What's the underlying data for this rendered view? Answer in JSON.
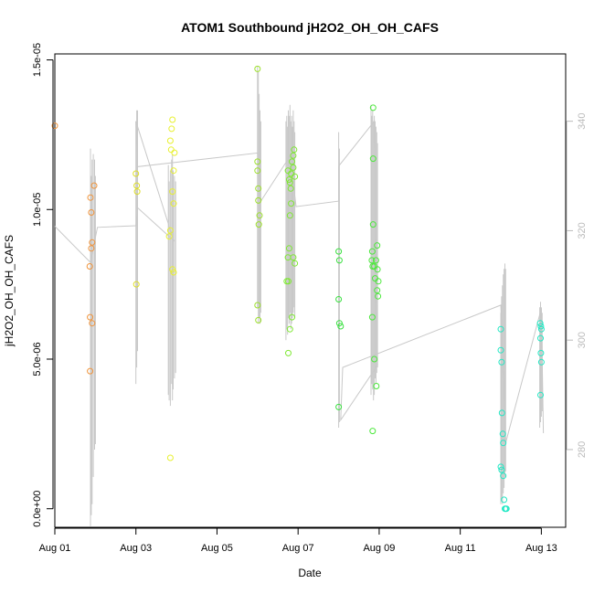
{
  "chart_data": {
    "type": "scatter",
    "title": "ATOM1 Southbound jH2O2_OH_OH_CAFS",
    "xlabel": "Date",
    "ylabel": "jH2O2_OH_OH_CAFS",
    "xlim": [
      0,
      12.6
    ],
    "ylim": [
      -6.2e-07,
      1.52e-05
    ],
    "y2lim": [
      265.8,
      352.3
    ],
    "x_ticks": [
      {
        "x": 0,
        "label": "Aug 01"
      },
      {
        "x": 2,
        "label": "Aug 03"
      },
      {
        "x": 4,
        "label": "Aug 05"
      },
      {
        "x": 6,
        "label": "Aug 07"
      },
      {
        "x": 8,
        "label": "Aug 09"
      },
      {
        "x": 10,
        "label": "Aug 11"
      },
      {
        "x": 12,
        "label": "Aug 13"
      }
    ],
    "y_ticks": [
      {
        "v": 0,
        "label": "0.0e+00"
      },
      {
        "v": 5e-06,
        "label": "5.0e-06"
      },
      {
        "v": 1e-05,
        "label": "1.0e-05"
      },
      {
        "v": 1.5e-05,
        "label": "1.5e-05"
      }
    ],
    "y2_ticks": [
      {
        "v": 280,
        "label": "280"
      },
      {
        "v": 300,
        "label": "300"
      },
      {
        "v": 320,
        "label": "320"
      },
      {
        "v": 340,
        "label": "340"
      }
    ],
    "points": [
      {
        "x": 0.0,
        "y": 1.28e-05,
        "color": "#f0943c"
      },
      {
        "x": 0.88,
        "y": 1.04e-05,
        "color": "#f0943c"
      },
      {
        "x": 0.9,
        "y": 9.9e-06,
        "color": "#f0943c"
      },
      {
        "x": 0.92,
        "y": 8.9e-06,
        "color": "#f0943c"
      },
      {
        "x": 0.9,
        "y": 8.7e-06,
        "color": "#f0943c"
      },
      {
        "x": 0.86,
        "y": 8.1e-06,
        "color": "#f0943c"
      },
      {
        "x": 0.87,
        "y": 6.4e-06,
        "color": "#f0943c"
      },
      {
        "x": 0.92,
        "y": 6.2e-06,
        "color": "#f0943c"
      },
      {
        "x": 0.87,
        "y": 4.6e-06,
        "color": "#f0943c"
      },
      {
        "x": 0.97,
        "y": 1.08e-05,
        "color": "#f0943c"
      },
      {
        "x": 2.0,
        "y": 1.12e-05,
        "color": "#dede28"
      },
      {
        "x": 2.02,
        "y": 1.08e-05,
        "color": "#dede28"
      },
      {
        "x": 2.03,
        "y": 1.06e-05,
        "color": "#dede28"
      },
      {
        "x": 2.01,
        "y": 7.5e-06,
        "color": "#dede28"
      },
      {
        "x": 2.85,
        "y": 1.23e-05,
        "color": "#e8f030"
      },
      {
        "x": 2.9,
        "y": 1.3e-05,
        "color": "#e8f030"
      },
      {
        "x": 2.88,
        "y": 1.27e-05,
        "color": "#e8f030"
      },
      {
        "x": 2.87,
        "y": 1.2e-05,
        "color": "#e8f030"
      },
      {
        "x": 2.95,
        "y": 1.19e-05,
        "color": "#e8f030"
      },
      {
        "x": 2.93,
        "y": 1.13e-05,
        "color": "#e8f030"
      },
      {
        "x": 2.9,
        "y": 1.06e-05,
        "color": "#e8f030"
      },
      {
        "x": 2.93,
        "y": 1.02e-05,
        "color": "#e8f030"
      },
      {
        "x": 2.85,
        "y": 9.3e-06,
        "color": "#e8f030"
      },
      {
        "x": 2.82,
        "y": 9.1e-06,
        "color": "#e8f030"
      },
      {
        "x": 2.9,
        "y": 8e-06,
        "color": "#e8f030"
      },
      {
        "x": 2.93,
        "y": 7.9e-06,
        "color": "#e8f030"
      },
      {
        "x": 2.85,
        "y": 1.7e-06,
        "color": "#e8f030"
      },
      {
        "x": 5.0,
        "y": 1.47e-05,
        "color": "#9ce02c"
      },
      {
        "x": 5.0,
        "y": 1.16e-05,
        "color": "#9ce02c"
      },
      {
        "x": 5.0,
        "y": 1.13e-05,
        "color": "#9ce02c"
      },
      {
        "x": 5.02,
        "y": 1.07e-05,
        "color": "#9ce02c"
      },
      {
        "x": 5.02,
        "y": 1.03e-05,
        "color": "#9ce02c"
      },
      {
        "x": 5.05,
        "y": 9.8e-06,
        "color": "#9ce02c"
      },
      {
        "x": 5.03,
        "y": 9.5e-06,
        "color": "#9ce02c"
      },
      {
        "x": 5.0,
        "y": 6.8e-06,
        "color": "#9ce02c"
      },
      {
        "x": 5.02,
        "y": 6.3e-06,
        "color": "#9ce02c"
      },
      {
        "x": 5.75,
        "y": 1.13e-05,
        "color": "#7ee832"
      },
      {
        "x": 5.78,
        "y": 1.1e-05,
        "color": "#7ee832"
      },
      {
        "x": 5.8,
        "y": 1.09e-05,
        "color": "#7ee832"
      },
      {
        "x": 5.82,
        "y": 1.07e-05,
        "color": "#7ee832"
      },
      {
        "x": 5.83,
        "y": 1.12e-05,
        "color": "#7ee832"
      },
      {
        "x": 5.85,
        "y": 1.16e-05,
        "color": "#7ee832"
      },
      {
        "x": 5.88,
        "y": 1.18e-05,
        "color": "#7ee832"
      },
      {
        "x": 5.9,
        "y": 1.2e-05,
        "color": "#7ee832"
      },
      {
        "x": 5.92,
        "y": 1.11e-05,
        "color": "#7ee832"
      },
      {
        "x": 5.88,
        "y": 1.14e-05,
        "color": "#7ee832"
      },
      {
        "x": 5.83,
        "y": 1.02e-05,
        "color": "#7ee832"
      },
      {
        "x": 5.8,
        "y": 9.8e-06,
        "color": "#7ee832"
      },
      {
        "x": 5.78,
        "y": 8.7e-06,
        "color": "#7ee832"
      },
      {
        "x": 5.75,
        "y": 8.4e-06,
        "color": "#7ee832"
      },
      {
        "x": 5.88,
        "y": 8.4e-06,
        "color": "#7ee832"
      },
      {
        "x": 5.92,
        "y": 8.2e-06,
        "color": "#7ee832"
      },
      {
        "x": 5.72,
        "y": 7.6e-06,
        "color": "#7ee832"
      },
      {
        "x": 5.76,
        "y": 7.6e-06,
        "color": "#7ee832"
      },
      {
        "x": 5.85,
        "y": 6.4e-06,
        "color": "#7ee832"
      },
      {
        "x": 5.8,
        "y": 6e-06,
        "color": "#7ee832"
      },
      {
        "x": 5.76,
        "y": 5.2e-06,
        "color": "#7ee832"
      },
      {
        "x": 7.0,
        "y": 8.6e-06,
        "color": "#3ae040"
      },
      {
        "x": 7.02,
        "y": 8.3e-06,
        "color": "#3ae040"
      },
      {
        "x": 7.0,
        "y": 7e-06,
        "color": "#3ae040"
      },
      {
        "x": 7.02,
        "y": 6.2e-06,
        "color": "#3ae040"
      },
      {
        "x": 7.05,
        "y": 6.1e-06,
        "color": "#3ae040"
      },
      {
        "x": 7.0,
        "y": 3.4e-06,
        "color": "#3ae040"
      },
      {
        "x": 7.85,
        "y": 1.34e-05,
        "color": "#4ce83c"
      },
      {
        "x": 7.85,
        "y": 1.17e-05,
        "color": "#4ce83c"
      },
      {
        "x": 7.85,
        "y": 9.5e-06,
        "color": "#4ce83c"
      },
      {
        "x": 7.95,
        "y": 8.8e-06,
        "color": "#4ce83c"
      },
      {
        "x": 7.83,
        "y": 8.6e-06,
        "color": "#4ce83c"
      },
      {
        "x": 7.82,
        "y": 8.3e-06,
        "color": "#4ce83c"
      },
      {
        "x": 7.92,
        "y": 8.3e-06,
        "color": "#4ce83c"
      },
      {
        "x": 7.84,
        "y": 8.1e-06,
        "color": "#4ce83c"
      },
      {
        "x": 7.88,
        "y": 8.1e-06,
        "color": "#4ce83c"
      },
      {
        "x": 7.96,
        "y": 8e-06,
        "color": "#4ce83c"
      },
      {
        "x": 7.9,
        "y": 7.7e-06,
        "color": "#4ce83c"
      },
      {
        "x": 7.98,
        "y": 7.6e-06,
        "color": "#4ce83c"
      },
      {
        "x": 7.95,
        "y": 7.3e-06,
        "color": "#4ce83c"
      },
      {
        "x": 7.97,
        "y": 7.1e-06,
        "color": "#4ce83c"
      },
      {
        "x": 7.83,
        "y": 6.4e-06,
        "color": "#4ce83c"
      },
      {
        "x": 7.88,
        "y": 5e-06,
        "color": "#4ce83c"
      },
      {
        "x": 7.93,
        "y": 4.1e-06,
        "color": "#4ce83c"
      },
      {
        "x": 7.84,
        "y": 2.6e-06,
        "color": "#4ce83c"
      },
      {
        "x": 11.0,
        "y": 6e-06,
        "color": "#22e8c4"
      },
      {
        "x": 11.0,
        "y": 5.3e-06,
        "color": "#22e8c4"
      },
      {
        "x": 11.02,
        "y": 4.9e-06,
        "color": "#22e8c4"
      },
      {
        "x": 11.03,
        "y": 3.2e-06,
        "color": "#22e8c4"
      },
      {
        "x": 11.05,
        "y": 2.5e-06,
        "color": "#22e8c4"
      },
      {
        "x": 11.06,
        "y": 2.2e-06,
        "color": "#22e8c4"
      },
      {
        "x": 11.0,
        "y": 1.4e-06,
        "color": "#22e8c4"
      },
      {
        "x": 11.02,
        "y": 1.3e-06,
        "color": "#22e8c4"
      },
      {
        "x": 11.06,
        "y": 1.1e-06,
        "color": "#22e8c4"
      },
      {
        "x": 11.08,
        "y": 3e-07,
        "color": "#22e8c4"
      },
      {
        "x": 11.1,
        "y": 0.0,
        "color": "#22e8c4"
      },
      {
        "x": 11.12,
        "y": 0.0,
        "color": "#22e8c4"
      },
      {
        "x": 11.14,
        "y": 0.0,
        "color": "#22e8c4"
      },
      {
        "x": 11.97,
        "y": 6.2e-06,
        "color": "#22e8c4"
      },
      {
        "x": 11.99,
        "y": 6.1e-06,
        "color": "#22e8c4"
      },
      {
        "x": 12.0,
        "y": 6e-06,
        "color": "#22e8c4"
      },
      {
        "x": 11.98,
        "y": 5.7e-06,
        "color": "#22e8c4"
      },
      {
        "x": 11.99,
        "y": 5.2e-06,
        "color": "#22e8c4"
      },
      {
        "x": 12.0,
        "y": 4.9e-06,
        "color": "#22e8c4"
      },
      {
        "x": 11.98,
        "y": 3.8e-06,
        "color": "#22e8c4"
      }
    ],
    "line_series": {
      "name": "secondary axis trace",
      "color": "#c8c8c8",
      "y2": [
        [
          0.0,
          320.8
        ],
        [
          0.88,
          314.2
        ],
        [
          1.05,
          320.6
        ],
        [
          2.0,
          320.9
        ],
        [
          2.04,
          324.2
        ],
        [
          2.93,
          318.2
        ],
        [
          2.0,
          340.0
        ],
        [
          2.04,
          331.7
        ],
        [
          5.0,
          334.2
        ],
        [
          5.08,
          325.4
        ],
        [
          5.8,
          333.6
        ],
        [
          5.95,
          324.4
        ],
        [
          7.0,
          325.4
        ],
        [
          7.0,
          331.8
        ],
        [
          7.88,
          340.0
        ],
        [
          7.96,
          295.4
        ],
        [
          7.05,
          285.4
        ],
        [
          7.1,
          295.0
        ],
        [
          11.0,
          306.4
        ],
        [
          11.12,
          281.2
        ],
        [
          12.0,
          305.8
        ],
        [
          12.05,
          283.0
        ]
      ],
      "spikes": [
        [
          0.88,
          266,
          335
        ],
        [
          0.9,
          268,
          330
        ],
        [
          0.92,
          270,
          333
        ],
        [
          0.95,
          275,
          334
        ],
        [
          0.98,
          280,
          333
        ],
        [
          1.0,
          281,
          330
        ],
        [
          2.0,
          292,
          340
        ],
        [
          2.02,
          295,
          342
        ],
        [
          2.04,
          298,
          342
        ],
        [
          2.8,
          290,
          332
        ],
        [
          2.82,
          289,
          329
        ],
        [
          2.85,
          288,
          331
        ],
        [
          2.88,
          292,
          333
        ],
        [
          2.9,
          289,
          334
        ],
        [
          2.92,
          291,
          331
        ],
        [
          2.95,
          293,
          330
        ],
        [
          2.98,
          294,
          329
        ],
        [
          5.0,
          306,
          350
        ],
        [
          5.02,
          303,
          349
        ],
        [
          5.04,
          304,
          345
        ],
        [
          5.06,
          303,
          342
        ],
        [
          5.08,
          305,
          340
        ],
        [
          5.7,
          300,
          340
        ],
        [
          5.72,
          302,
          341
        ],
        [
          5.74,
          301,
          339
        ],
        [
          5.76,
          304,
          342
        ],
        [
          5.78,
          303,
          341
        ],
        [
          5.8,
          305,
          343
        ],
        [
          5.82,
          302,
          340
        ],
        [
          5.84,
          303,
          341
        ],
        [
          5.86,
          304,
          339
        ],
        [
          5.88,
          305,
          342
        ],
        [
          5.9,
          306,
          340
        ],
        [
          5.92,
          304,
          338
        ],
        [
          7.0,
          284,
          338
        ],
        [
          7.02,
          285,
          335
        ],
        [
          7.8,
          290,
          343
        ],
        [
          7.82,
          292,
          341
        ],
        [
          7.84,
          291,
          342
        ],
        [
          7.86,
          289,
          340
        ],
        [
          7.88,
          290,
          341
        ],
        [
          7.9,
          293,
          340
        ],
        [
          7.92,
          292,
          339
        ],
        [
          7.94,
          294,
          338
        ],
        [
          7.96,
          295,
          336
        ],
        [
          11.0,
          270,
          305
        ],
        [
          11.02,
          271,
          308
        ],
        [
          11.04,
          270,
          310
        ],
        [
          11.06,
          272,
          312
        ],
        [
          11.08,
          273,
          313
        ],
        [
          11.1,
          275,
          314
        ],
        [
          11.12,
          276,
          313
        ],
        [
          11.96,
          284,
          306
        ],
        [
          11.98,
          285,
          307
        ],
        [
          12.0,
          286,
          306
        ],
        [
          12.02,
          287,
          305
        ]
      ]
    }
  }
}
